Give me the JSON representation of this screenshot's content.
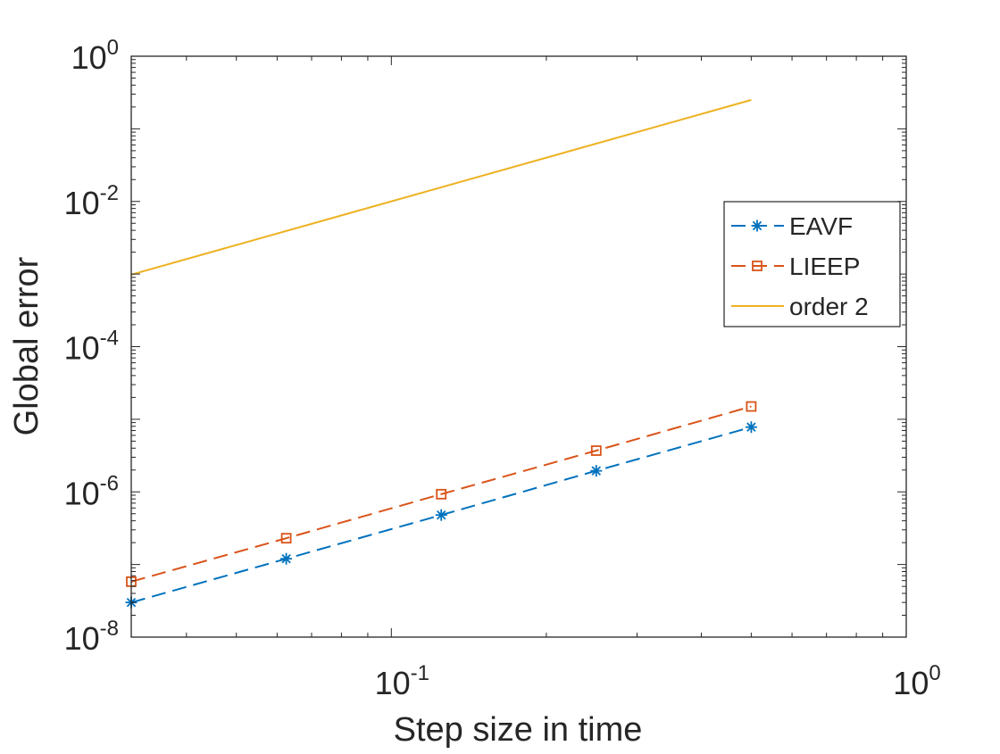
{
  "chart_data": {
    "type": "line",
    "title": "",
    "xlabel": "Step size in time",
    "ylabel": "Global error",
    "xscale": "log",
    "yscale": "log",
    "xlim": [
      0.03125,
      1
    ],
    "ylim": [
      1e-08,
      1
    ],
    "grid": false,
    "legend_position": "right",
    "x_ticks": [
      {
        "value": 0.1,
        "base": "10",
        "exp": "-1"
      },
      {
        "value": 1,
        "base": "10",
        "exp": "0"
      }
    ],
    "y_ticks": [
      {
        "value": 1,
        "base": "10",
        "exp": "0"
      },
      {
        "value": 0.01,
        "base": "10",
        "exp": "-2"
      },
      {
        "value": 0.0001,
        "base": "10",
        "exp": "-4"
      },
      {
        "value": 1e-06,
        "base": "10",
        "exp": "-6"
      },
      {
        "value": 1e-08,
        "base": "10",
        "exp": "-8"
      }
    ],
    "series": [
      {
        "name": "EAVF",
        "color": "#0072BD",
        "line": "dashed",
        "marker": "asterisk",
        "x": [
          0.03125,
          0.0625,
          0.125,
          0.25,
          0.5
        ],
        "y": [
          3e-08,
          1.2e-07,
          4.8e-07,
          1.95e-06,
          7.8e-06
        ]
      },
      {
        "name": "LIEEP",
        "color": "#D95319",
        "line": "dashed",
        "marker": "square",
        "x": [
          0.03125,
          0.0625,
          0.125,
          0.25,
          0.5
        ],
        "y": [
          5.8e-08,
          2.3e-07,
          9.3e-07,
          3.7e-06,
          1.5e-05
        ]
      },
      {
        "name": "order 2",
        "color": "#EDB120",
        "line": "solid",
        "marker": "none",
        "x": [
          0.03125,
          0.5
        ],
        "y": [
          0.00098,
          0.25
        ]
      }
    ]
  }
}
